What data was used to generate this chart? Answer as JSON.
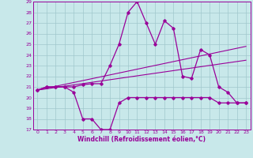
{
  "xlabel": "Windchill (Refroidissement éolien,°C)",
  "x_values": [
    0,
    1,
    2,
    3,
    4,
    5,
    6,
    7,
    8,
    9,
    10,
    11,
    12,
    13,
    14,
    15,
    16,
    17,
    18,
    19,
    20,
    21,
    22,
    23
  ],
  "line1": [
    20.7,
    21,
    21,
    21,
    20.5,
    18,
    18,
    17,
    17,
    19.5,
    20,
    20,
    20,
    20,
    20,
    20,
    20,
    20,
    20,
    20,
    19.5,
    19.5,
    19.5,
    19.5
  ],
  "line2": [
    20.7,
    21,
    21,
    21,
    21,
    21.2,
    21.3,
    21.3,
    23,
    25,
    28,
    29,
    27,
    25,
    27.2,
    26.5,
    22,
    21.8,
    24.5,
    24,
    21,
    20.5,
    19.5,
    19.5
  ],
  "line3": [
    [
      0,
      20.7
    ],
    [
      23,
      24.8
    ]
  ],
  "line4": [
    [
      0,
      20.7
    ],
    [
      23,
      23.5
    ]
  ],
  "ylim": [
    17,
    29
  ],
  "xlim": [
    -0.5,
    23.5
  ],
  "yticks": [
    17,
    18,
    19,
    20,
    21,
    22,
    23,
    24,
    25,
    26,
    27,
    28,
    29
  ],
  "xticks": [
    0,
    1,
    2,
    3,
    4,
    5,
    6,
    7,
    8,
    9,
    10,
    11,
    12,
    13,
    14,
    15,
    16,
    17,
    18,
    19,
    20,
    21,
    22,
    23
  ],
  "line_color": "#990099",
  "bg_color": "#c8e8ea",
  "grid_color": "#a0c8cc"
}
